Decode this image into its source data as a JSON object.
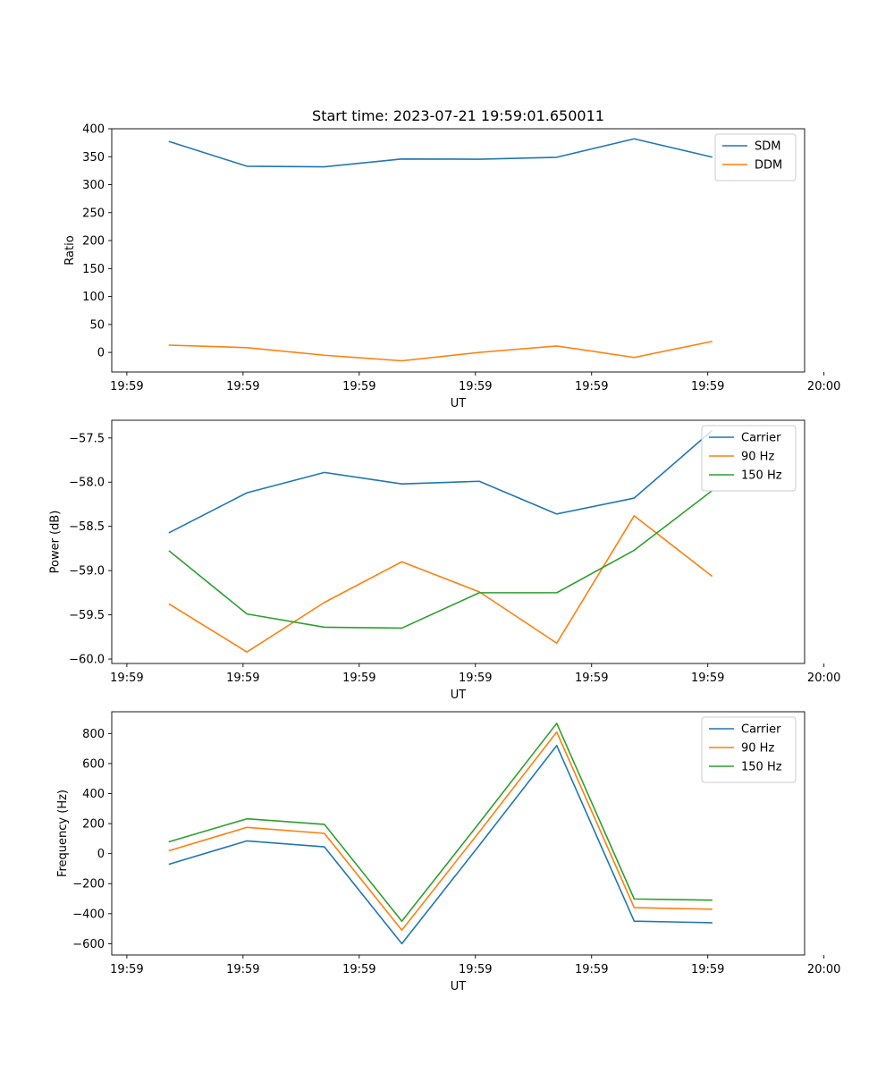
{
  "chart_data": [
    {
      "type": "line",
      "title": "Start time: 2023-07-21 19:59:01.650011",
      "xlabel": "UT",
      "ylabel": "Ratio",
      "x": [
        1,
        2,
        3,
        4,
        5,
        6,
        7,
        8
      ],
      "xlim": [
        0.255,
        9.2
      ],
      "xticks": [
        0.45,
        1.95,
        3.45,
        4.95,
        6.45,
        7.95,
        9.45
      ],
      "xtick_labels": [
        "19:59",
        "19:59",
        "19:59",
        "19:59",
        "19:59",
        "19:59",
        "20:00"
      ],
      "ylim": [
        -35,
        400
      ],
      "yticks": [
        0,
        50,
        100,
        150,
        200,
        250,
        300,
        350,
        400
      ],
      "ytick_labels": [
        "0",
        "50",
        "100",
        "150",
        "200",
        "250",
        "300",
        "350",
        "400"
      ],
      "legend": "top-right",
      "series": [
        {
          "name": "SDM",
          "color": "#1f77b4",
          "values": [
            377,
            333,
            332,
            346,
            345.5,
            349,
            382,
            349.5
          ]
        },
        {
          "name": "DDM",
          "color": "#ff7f0e",
          "values": [
            13,
            8.5,
            -5,
            -15,
            0,
            11.5,
            -9,
            19.5
          ]
        }
      ]
    },
    {
      "type": "line",
      "title": "",
      "xlabel": "UT",
      "ylabel": "Power (dB)",
      "x": [
        1,
        2,
        3,
        4,
        5,
        6,
        7,
        8
      ],
      "xlim": [
        0.255,
        9.2
      ],
      "xticks": [
        0.45,
        1.95,
        3.45,
        4.95,
        6.45,
        7.95,
        9.45
      ],
      "xtick_labels": [
        "19:59",
        "19:59",
        "19:59",
        "19:59",
        "19:59",
        "19:59",
        "20:00"
      ],
      "ylim": [
        -60.05,
        -57.3
      ],
      "yticks": [
        -60.0,
        -59.5,
        -59.0,
        -58.5,
        -58.0,
        -57.5
      ],
      "ytick_labels": [
        "−60.0",
        "−59.5",
        "−59.0",
        "−58.5",
        "−58.0",
        "−57.5"
      ],
      "legend": "top-right",
      "series": [
        {
          "name": "Carrier",
          "color": "#1f77b4",
          "values": [
            -58.57,
            -58.12,
            -57.89,
            -58.02,
            -57.99,
            -58.36,
            -58.18,
            -57.42
          ]
        },
        {
          "name": "90 Hz",
          "color": "#ff7f0e",
          "values": [
            -59.38,
            -59.92,
            -59.36,
            -58.9,
            -59.24,
            -59.82,
            -58.38,
            -59.06
          ]
        },
        {
          "name": "150 Hz",
          "color": "#2ca02c",
          "values": [
            -58.78,
            -59.49,
            -59.64,
            -59.65,
            -59.25,
            -59.25,
            -58.77,
            -58.1
          ]
        }
      ]
    },
    {
      "type": "line",
      "title": "",
      "xlabel": "UT",
      "ylabel": "Frequency (Hz)",
      "x": [
        1,
        2,
        3,
        4,
        5,
        6,
        7,
        8
      ],
      "xlim": [
        0.255,
        9.2
      ],
      "xticks": [
        0.45,
        1.95,
        3.45,
        4.95,
        6.45,
        7.95,
        9.45
      ],
      "xtick_labels": [
        "19:59",
        "19:59",
        "19:59",
        "19:59",
        "19:59",
        "19:59",
        "20:00"
      ],
      "ylim": [
        -675,
        945
      ],
      "yticks": [
        -600,
        -400,
        -200,
        0,
        200,
        400,
        600,
        800
      ],
      "ytick_labels": [
        "−600",
        "−400",
        "−200",
        "0",
        "200",
        "400",
        "600",
        "800"
      ],
      "legend": "top-right",
      "series": [
        {
          "name": "Carrier",
          "color": "#1f77b4",
          "values": [
            -70,
            85,
            45,
            -600,
            55,
            720,
            -450,
            -460
          ]
        },
        {
          "name": "90 Hz",
          "color": "#ff7f0e",
          "values": [
            20,
            175,
            135,
            -510,
            145,
            810,
            -360,
            -370
          ]
        },
        {
          "name": "150 Hz",
          "color": "#2ca02c",
          "values": [
            80,
            232,
            195,
            -450,
            205,
            868,
            -302,
            -310
          ]
        }
      ]
    }
  ]
}
